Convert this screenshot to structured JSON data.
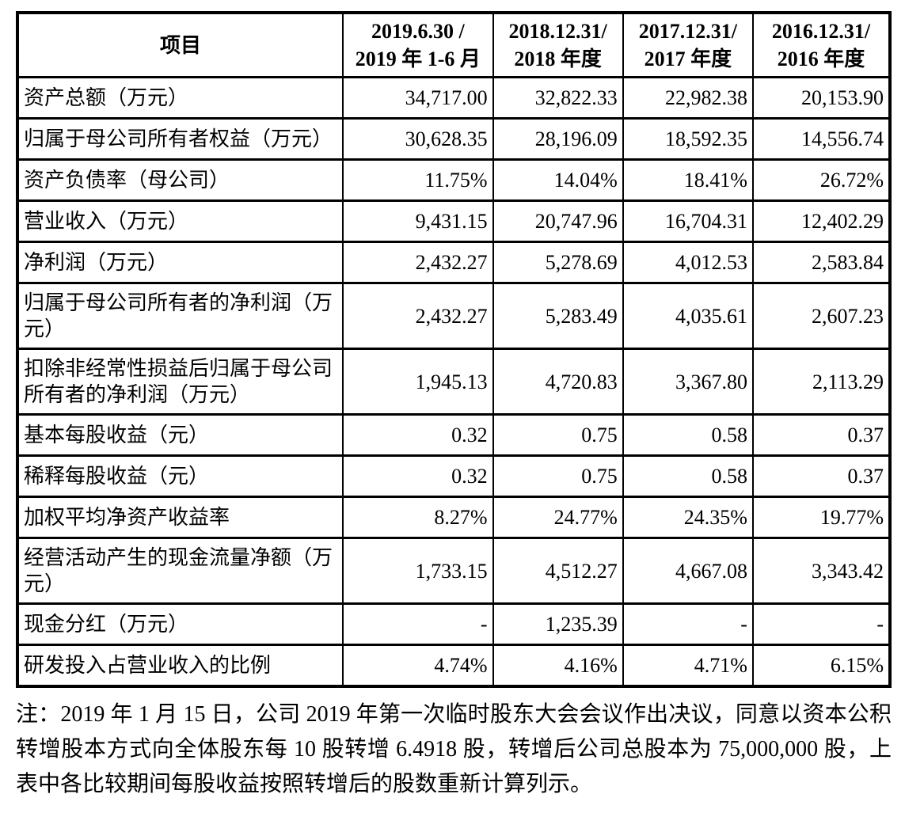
{
  "document": {
    "table": {
      "header": {
        "item": "项目",
        "periods": [
          {
            "line1": "2019.6.30 /",
            "line2": "2019 年 1-6 月"
          },
          {
            "line1": "2018.12.31/",
            "line2": "2018 年度"
          },
          {
            "line1": "2017.12.31/",
            "line2": "2017 年度"
          },
          {
            "line1": "2016.12.31/",
            "line2": "2016 年度"
          }
        ]
      },
      "rows": [
        {
          "label": "资产总额（万元）",
          "values": [
            "34,717.00",
            "32,822.33",
            "22,982.38",
            "20,153.90"
          ]
        },
        {
          "label": "归属于母公司所有者权益（万元）",
          "values": [
            "30,628.35",
            "28,196.09",
            "18,592.35",
            "14,556.74"
          ]
        },
        {
          "label": "资产负债率（母公司）",
          "values": [
            "11.75%",
            "14.04%",
            "18.41%",
            "26.72%"
          ]
        },
        {
          "label": "营业收入（万元）",
          "values": [
            "9,431.15",
            "20,747.96",
            "16,704.31",
            "12,402.29"
          ]
        },
        {
          "label": "净利润（万元）",
          "values": [
            "2,432.27",
            "5,278.69",
            "4,012.53",
            "2,583.84"
          ]
        },
        {
          "label": "归属于母公司所有者的净利润（万元）",
          "values": [
            "2,432.27",
            "5,283.49",
            "4,035.61",
            "2,607.23"
          ]
        },
        {
          "label": "扣除非经常性损益后归属于母公司所有者的净利润（万元）",
          "values": [
            "1,945.13",
            "4,720.83",
            "3,367.80",
            "2,113.29"
          ]
        },
        {
          "label": "基本每股收益（元）",
          "values": [
            "0.32",
            "0.75",
            "0.58",
            "0.37"
          ]
        },
        {
          "label": "稀释每股收益（元）",
          "values": [
            "0.32",
            "0.75",
            "0.58",
            "0.37"
          ]
        },
        {
          "label": "加权平均净资产收益率",
          "values": [
            "8.27%",
            "24.77%",
            "24.35%",
            "19.77%"
          ]
        },
        {
          "label": "经营活动产生的现金流量净额（万元）",
          "values": [
            "1,733.15",
            "4,512.27",
            "4,667.08",
            "3,343.42"
          ]
        },
        {
          "label": "现金分红（万元）",
          "values": [
            "-",
            "1,235.39",
            "-",
            "-"
          ]
        },
        {
          "label": "研发投入占营业收入的比例",
          "values": [
            "4.74%",
            "4.16%",
            "4.71%",
            "6.15%"
          ]
        }
      ]
    },
    "note": "注：2019 年 1 月 15 日，公司 2019 年第一次临时股东大会会议作出决议，同意以资本公积转增股本方式向全体股东每 10 股转增 6.4918 股，转增后公司总股本为 75,000,000 股，上表中各比较期间每股收益按照转增后的股数重新计算列示。"
  }
}
